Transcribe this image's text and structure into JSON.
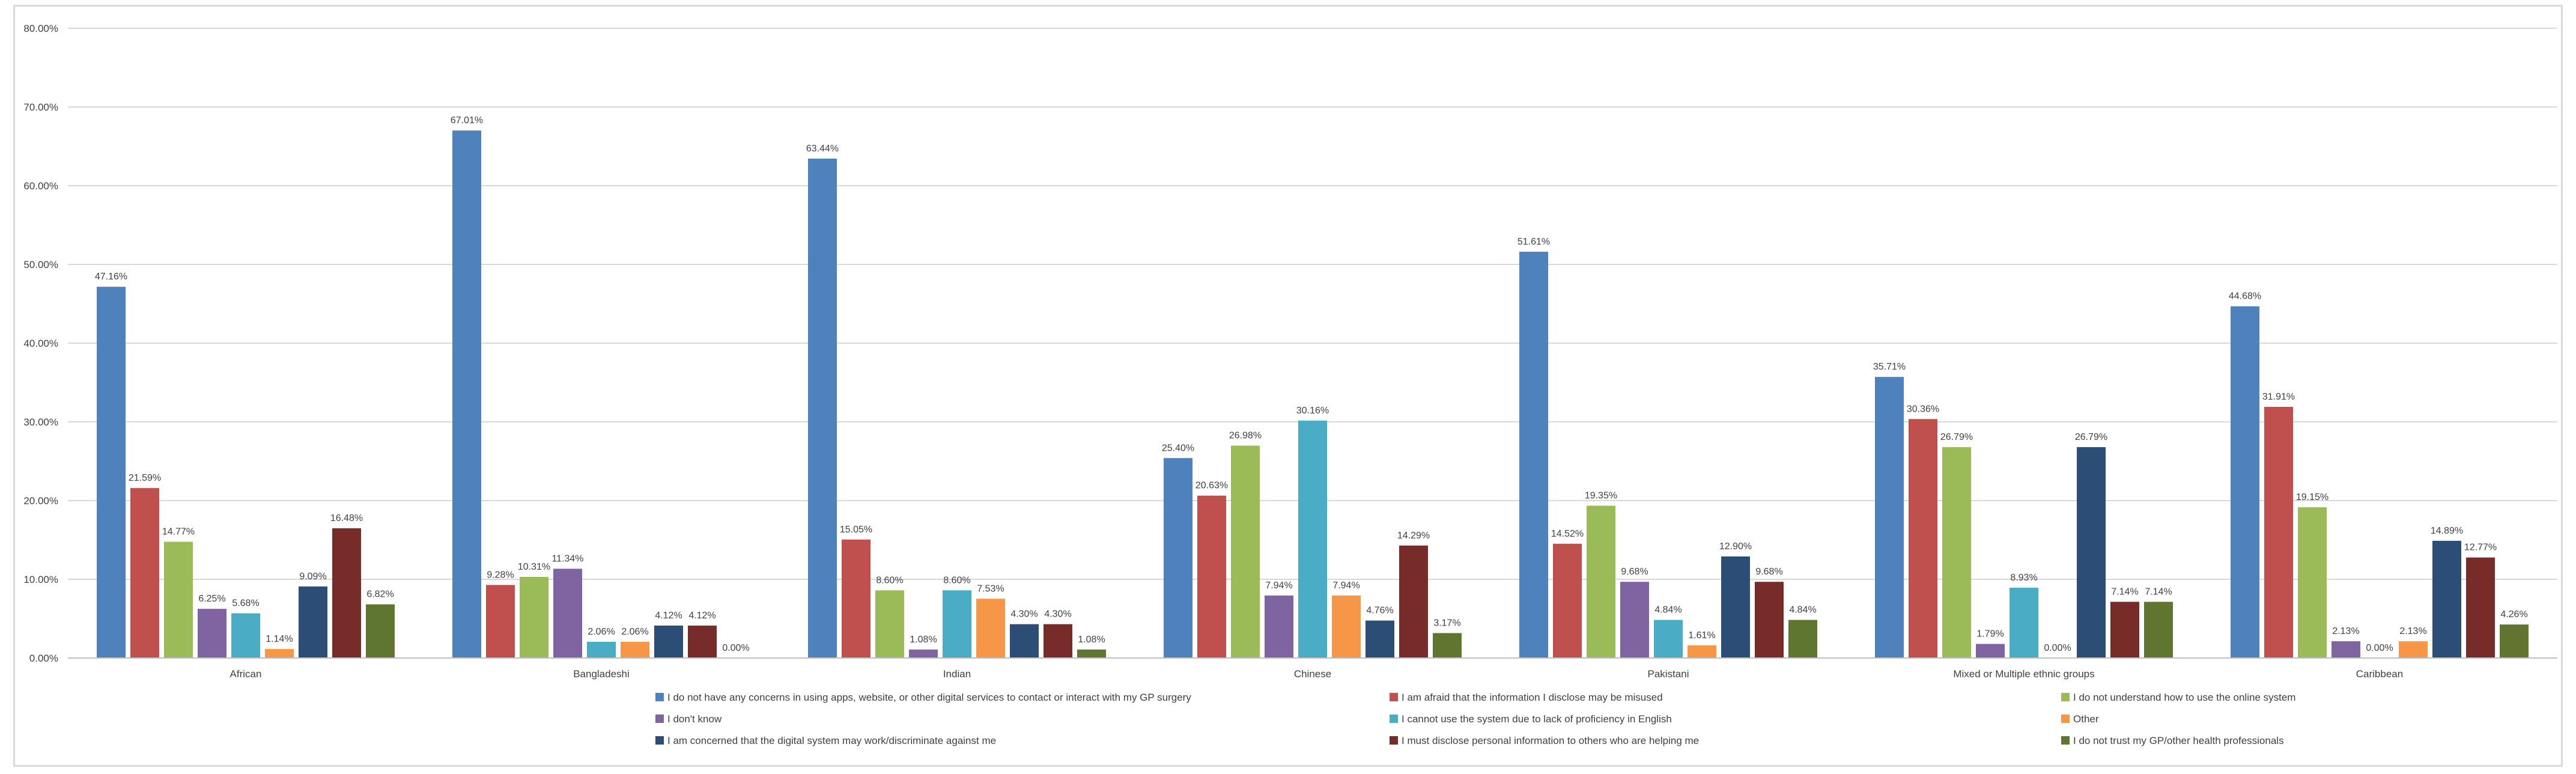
{
  "chart_data": {
    "type": "bar",
    "title": "",
    "xlabel": "",
    "ylabel": "",
    "ylim": [
      0,
      80
    ],
    "ytick_step": 10,
    "ytick_format": "percent_2dp",
    "grid": true,
    "legend_position": "bottom",
    "categories": [
      "African",
      "Bangladeshi",
      "Indian",
      "Chinese",
      "Pakistani",
      "Mixed or Multiple ethnic groups",
      "Caribbean"
    ],
    "series": [
      {
        "name": "I do not have any concerns in using apps, website, or other digital services to contact or interact with my GP surgery",
        "color": "#4f81bd",
        "values": [
          47.16,
          67.01,
          63.44,
          25.4,
          51.61,
          35.71,
          44.68
        ]
      },
      {
        "name": "I am afraid that the information I disclose may be misused",
        "color": "#c0504d",
        "values": [
          21.59,
          9.28,
          15.05,
          20.63,
          14.52,
          30.36,
          31.91
        ]
      },
      {
        "name": "I do not understand how to use the online system",
        "color": "#9bbb59",
        "values": [
          14.77,
          10.31,
          8.6,
          26.98,
          19.35,
          26.79,
          19.15
        ]
      },
      {
        "name": "I don't know",
        "color": "#8064a2",
        "values": [
          6.25,
          11.34,
          1.08,
          7.94,
          9.68,
          1.79,
          2.13
        ]
      },
      {
        "name": "I cannot use the system due to lack of proficiency in English",
        "color": "#4bacc6",
        "values": [
          5.68,
          2.06,
          8.6,
          30.16,
          4.84,
          8.93,
          0.0
        ]
      },
      {
        "name": "Other",
        "color": "#f79646",
        "values": [
          1.14,
          2.06,
          7.53,
          7.94,
          1.61,
          0.0,
          2.13
        ]
      },
      {
        "name": "I am concerned that the digital system may work/discriminate against me",
        "color": "#2c4d75",
        "values": [
          9.09,
          4.12,
          4.3,
          4.76,
          12.9,
          26.79,
          14.89
        ]
      },
      {
        "name": "I must disclose personal information to others who are helping me",
        "color": "#772c2a",
        "values": [
          16.48,
          4.12,
          4.3,
          14.29,
          9.68,
          7.14,
          12.77
        ]
      },
      {
        "name": "I do not trust my GP/other health professionals",
        "color": "#5f7530",
        "values": [
          6.82,
          0.0,
          1.08,
          3.17,
          4.84,
          7.14,
          4.26
        ]
      }
    ],
    "data_labels": [
      [
        "47.16%",
        "21.59%",
        "14.77%",
        "6.25%",
        "5.68%",
        "1.14%",
        "9.09%",
        "16.48%",
        "6.82%"
      ],
      [
        "67.01%",
        "9.28%",
        "10.31%",
        "11.34%",
        "2.06%",
        "2.06%",
        "4.12%",
        "4.12%",
        "0.00%"
      ],
      [
        "63.44%",
        "15.05%",
        "8.60%",
        "1.08%",
        "8.60%",
        "7.53%",
        "4.30%",
        "4.30%",
        "1.08%"
      ],
      [
        "25.40%",
        "20.63%",
        "26.98%",
        "7.94%",
        "30.16%",
        "7.94%",
        "4.76%",
        "14.29%",
        "3.17%"
      ],
      [
        "51.61%",
        "14.52%",
        "19.35%",
        "9.68%",
        "4.84%",
        "1.61%",
        "12.90%",
        "9.68%",
        "4.84%"
      ],
      [
        "35.71%",
        "30.36%",
        "26.79%",
        "1.79%",
        "8.93%",
        "0.00%",
        "26.79%",
        "7.14%",
        "7.14%"
      ],
      [
        "44.68%",
        "31.91%",
        "19.15%",
        "2.13%",
        "0.00%",
        "2.13%",
        "14.89%",
        "12.77%",
        "4.26%"
      ]
    ]
  }
}
